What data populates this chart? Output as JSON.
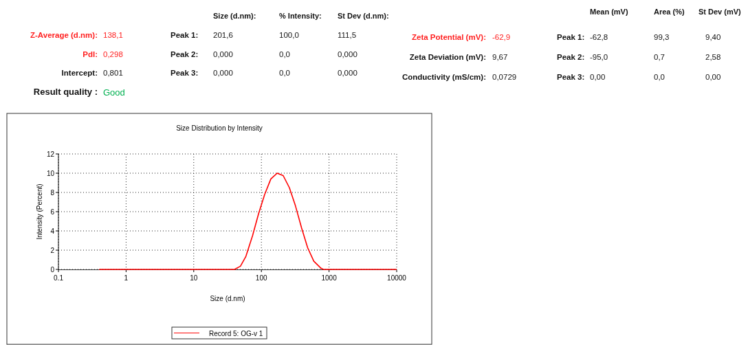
{
  "chart_data": [
    {
      "type": "other",
      "annotations": [
        "Size (d.nm):",
        "% Intensity:",
        "St Dev (d.nm):",
        "Z-Average (d.nm):",
        "138,1",
        "Peak 1:",
        "201,6",
        "100,0",
        "111,5",
        "PdI:",
        "0,298",
        "Peak 2:",
        "0,000",
        "0,0",
        "0,000",
        "Intercept:",
        "0,801",
        "Peak 3:",
        "0,000",
        "0,0",
        "0,000",
        "Result quality :",
        "Good",
        "Mean (mV)",
        "Area (%)",
        "St Dev (mV)",
        "Zeta Potential (mV):",
        "-62,9",
        "Peak 1:",
        "-62,8",
        "99,3",
        "9,40",
        "Zeta Deviation (mV):",
        "9,67",
        "Peak 2:",
        "-95,0",
        "0,7",
        "2,58",
        "Conductivity (mS/cm):",
        "0,0729",
        "Peak 3:",
        "0,00",
        "0,0",
        "0,00"
      ]
    },
    {
      "type": "line",
      "title": "Size Distribution by Intensity",
      "xlabel": "Size (d.nm)",
      "ylabel": "Intensity (Percent)",
      "x": [
        0.4,
        40,
        49,
        59,
        74,
        91,
        112,
        138,
        171,
        210,
        259,
        319,
        393,
        483,
        596,
        766,
        830,
        10000
      ],
      "series": [
        {
          "name": "Record 5: OG-v 1",
          "color": "#ff0000",
          "values": [
            0,
            0,
            0.33,
            1.35,
            3.5,
            5.8,
            7.8,
            9.4,
            10.0,
            9.75,
            8.5,
            6.6,
            4.3,
            2.25,
            0.85,
            0.1,
            0,
            0
          ]
        }
      ],
      "log": "x",
      "xlim": [
        0.1,
        10000
      ],
      "xticks": [
        0.1,
        1,
        10,
        100,
        1000,
        10000
      ],
      "ylim": [
        0,
        12
      ],
      "yticks": [
        0,
        2,
        4,
        6,
        8,
        10,
        12
      ],
      "grid": true,
      "legend": "bottom"
    }
  ]
}
